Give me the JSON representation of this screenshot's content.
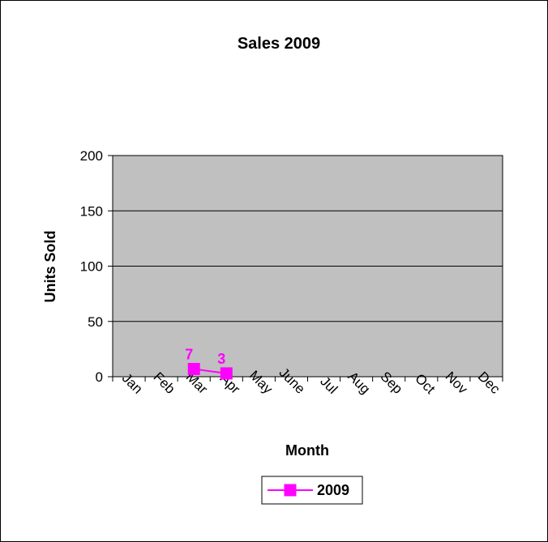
{
  "chart_data": {
    "type": "line",
    "title": "Sales 2009",
    "xlabel": "Month",
    "ylabel": "Units Sold",
    "categories": [
      "Jan",
      "Feb",
      "Mar",
      "Apr",
      "May",
      "June",
      "Jul",
      "Aug",
      "Sep",
      "Oct",
      "Nov",
      "Dec"
    ],
    "ylim": [
      0,
      200
    ],
    "yticks": [
      0,
      50,
      100,
      150,
      200
    ],
    "series": [
      {
        "name": "2009",
        "points": [
          {
            "x": "Mar",
            "y": 7,
            "label": "7"
          },
          {
            "x": "Apr",
            "y": 3,
            "label": "3"
          }
        ]
      }
    ],
    "grid": true,
    "legend": "bottom-center",
    "colors": {
      "plot_background": "#c0c0c0",
      "series": "#ff00ff",
      "grid": "#000000",
      "frame": "#000000"
    }
  }
}
